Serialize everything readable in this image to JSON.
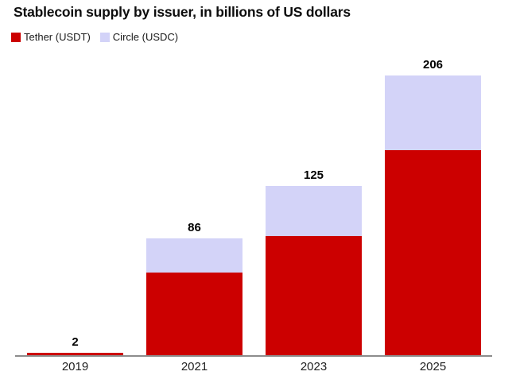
{
  "title": "Stablecoin supply by issuer, in billions of US dollars",
  "legend": [
    {
      "label": "Tether (USDT)",
      "color": "#cc0000"
    },
    {
      "label": "Circle (USDC)",
      "color": "#d3d3f8"
    }
  ],
  "chart_data": {
    "type": "bar",
    "stacked": true,
    "title": "Stablecoin supply by issuer, in billions of US dollars",
    "xlabel": "",
    "ylabel": "",
    "unit": "billions of US dollars",
    "categories": [
      "2019",
      "2021",
      "2023",
      "2025"
    ],
    "series": [
      {
        "name": "Tether (USDT)",
        "color": "#cc0000",
        "values": [
          2,
          61,
          88,
          151
        ]
      },
      {
        "name": "Circle (USDC)",
        "color": "#d3d3f8",
        "values": [
          0,
          25,
          37,
          55
        ]
      }
    ],
    "totals": [
      2,
      86,
      125,
      206
    ],
    "ylim": [
      0,
      206
    ],
    "grid": false,
    "legend_position": "top-left",
    "axis_line_color": "#8c8c8c"
  }
}
